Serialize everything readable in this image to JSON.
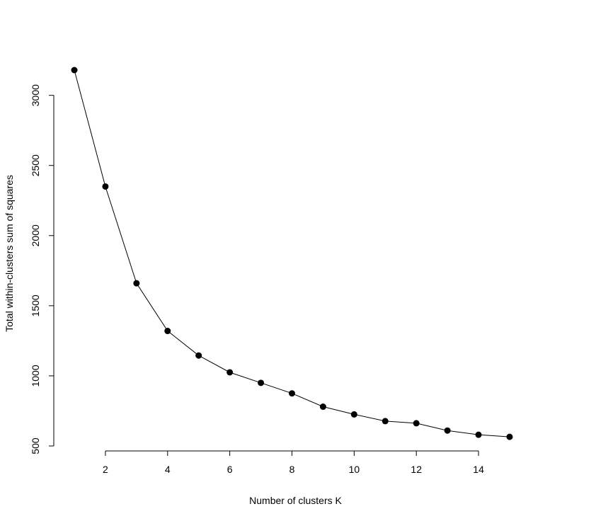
{
  "chart_data": {
    "type": "line",
    "title": "",
    "xlabel": "Number of clusters K",
    "ylabel": "Total within-clusters sum of squares",
    "x": [
      1,
      2,
      3,
      4,
      5,
      6,
      7,
      8,
      9,
      10,
      11,
      12,
      13,
      14,
      15
    ],
    "series": [
      {
        "values": [
          3180,
          2350,
          1660,
          1320,
          1145,
          1025,
          950,
          875,
          780,
          725,
          677,
          662,
          610,
          580,
          565
        ],
        "color": "#000000",
        "marker": "filled-circle"
      }
    ],
    "x_ticks": [
      2,
      4,
      6,
      8,
      10,
      12,
      14
    ],
    "x_tick_labels": [
      "2",
      "4",
      "6",
      "8",
      "10",
      "12",
      "14"
    ],
    "y_ticks": [
      500,
      1000,
      1500,
      2000,
      2500,
      3000
    ],
    "y_tick_labels": [
      "500",
      "1000",
      "1500",
      "2000",
      "2500",
      "3000"
    ],
    "xlim": [
      1,
      15
    ],
    "ylim": [
      500,
      3180
    ],
    "grid": false,
    "legend": "none"
  }
}
